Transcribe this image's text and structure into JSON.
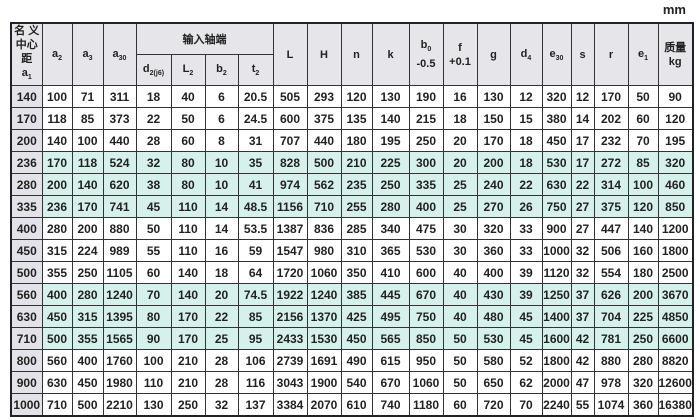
{
  "unit": "mm",
  "header": {
    "a1": {
      "top": "名 义",
      "mid": "中心距",
      "sym": "a",
      "sub": "1"
    },
    "a2": {
      "sym": "a",
      "sub": "2"
    },
    "a3": {
      "sym": "a",
      "sub": "3"
    },
    "a30": {
      "sym": "a",
      "sub": "30"
    },
    "input_group": "输入轴端",
    "d2": {
      "sym": "d",
      "sub": "2(j6)"
    },
    "L2": {
      "sym": "L",
      "sub": "2"
    },
    "b2": {
      "sym": "b",
      "sub": "2"
    },
    "t2": {
      "sym": "t",
      "sub": "2"
    },
    "L": "L",
    "H": "H",
    "n": "n",
    "k": "k",
    "b0": {
      "sym": "b",
      "sub": "0",
      "tol": "-0.5"
    },
    "f": {
      "sym": "f",
      "tol": "+0.1"
    },
    "g": "g",
    "d4": {
      "sym": "d",
      "sub": "4"
    },
    "e30": {
      "sym": "e",
      "sub": "30"
    },
    "s": "s",
    "r": "r",
    "e1": {
      "sym": "e",
      "sub": "1"
    },
    "mass": {
      "top": "质量",
      "unit": "kg"
    }
  },
  "rows": [
    [
      "140",
      "100",
      "71",
      "311",
      "18",
      "40",
      "6",
      "20.5",
      "505",
      "293",
      "120",
      "130",
      "190",
      "16",
      "130",
      "12",
      "320",
      "12",
      "170",
      "50",
      "90"
    ],
    [
      "170",
      "118",
      "85",
      "373",
      "22",
      "50",
      "6",
      "24.5",
      "600",
      "375",
      "135",
      "140",
      "215",
      "18",
      "150",
      "15",
      "380",
      "14",
      "202",
      "60",
      "120"
    ],
    [
      "200",
      "140",
      "100",
      "440",
      "28",
      "60",
      "8",
      "31",
      "707",
      "440",
      "180",
      "195",
      "250",
      "20",
      "170",
      "18",
      "450",
      "17",
      "232",
      "70",
      "195"
    ],
    [
      "236",
      "170",
      "118",
      "524",
      "32",
      "80",
      "10",
      "35",
      "828",
      "500",
      "210",
      "225",
      "300",
      "20",
      "200",
      "18",
      "530",
      "17",
      "272",
      "85",
      "320"
    ],
    [
      "280",
      "200",
      "140",
      "620",
      "38",
      "80",
      "10",
      "41",
      "974",
      "562",
      "235",
      "250",
      "335",
      "25",
      "240",
      "22",
      "630",
      "22",
      "314",
      "100",
      "460"
    ],
    [
      "335",
      "236",
      "170",
      "741",
      "45",
      "110",
      "14",
      "48.5",
      "1156",
      "710",
      "255",
      "280",
      "400",
      "25",
      "270",
      "26",
      "750",
      "27",
      "375",
      "120",
      "850"
    ],
    [
      "400",
      "280",
      "200",
      "880",
      "50",
      "110",
      "14",
      "53.5",
      "1387",
      "836",
      "285",
      "340",
      "475",
      "30",
      "320",
      "33",
      "900",
      "27",
      "447",
      "140",
      "1200"
    ],
    [
      "450",
      "315",
      "224",
      "989",
      "55",
      "110",
      "16",
      "59",
      "1547",
      "980",
      "310",
      "365",
      "530",
      "30",
      "360",
      "33",
      "1000",
      "32",
      "506",
      "160",
      "1800"
    ],
    [
      "500",
      "355",
      "250",
      "1105",
      "60",
      "140",
      "18",
      "64",
      "1720",
      "1060",
      "350",
      "410",
      "600",
      "40",
      "400",
      "39",
      "1120",
      "32",
      "554",
      "180",
      "2500"
    ],
    [
      "560",
      "400",
      "280",
      "1240",
      "70",
      "140",
      "20",
      "74.5",
      "1922",
      "1240",
      "385",
      "445",
      "670",
      "40",
      "430",
      "39",
      "1250",
      "37",
      "626",
      "200",
      "3670"
    ],
    [
      "630",
      "450",
      "315",
      "1395",
      "80",
      "170",
      "22",
      "85",
      "2156",
      "1370",
      "425",
      "495",
      "750",
      "40",
      "480",
      "45",
      "1400",
      "37",
      "704",
      "225",
      "4850"
    ],
    [
      "710",
      "500",
      "355",
      "1565",
      "90",
      "170",
      "25",
      "95",
      "2433",
      "1530",
      "450",
      "565",
      "850",
      "50",
      "530",
      "45",
      "1600",
      "42",
      "781",
      "250",
      "6600"
    ],
    [
      "800",
      "560",
      "400",
      "1760",
      "100",
      "210",
      "28",
      "106",
      "2739",
      "1691",
      "490",
      "615",
      "950",
      "50",
      "580",
      "52",
      "1800",
      "42",
      "880",
      "280",
      "8820"
    ],
    [
      "900",
      "630",
      "450",
      "1980",
      "110",
      "210",
      "28",
      "116",
      "3043",
      "1900",
      "540",
      "670",
      "1060",
      "50",
      "650",
      "62",
      "2000",
      "47",
      "978",
      "320",
      "12600"
    ],
    [
      "1000",
      "710",
      "500",
      "2210",
      "130",
      "250",
      "32",
      "137",
      "3384",
      "2070",
      "610",
      "740",
      "1180",
      "60",
      "720",
      "70",
      "2240",
      "55",
      "1074",
      "360",
      "16380"
    ]
  ],
  "highlighted_rows": [
    3,
    4,
    5,
    9,
    10,
    11
  ],
  "colors": {
    "highlight": "#d6f1ec",
    "header": "#e6e6ea",
    "first_column": "#e2e2e8"
  }
}
